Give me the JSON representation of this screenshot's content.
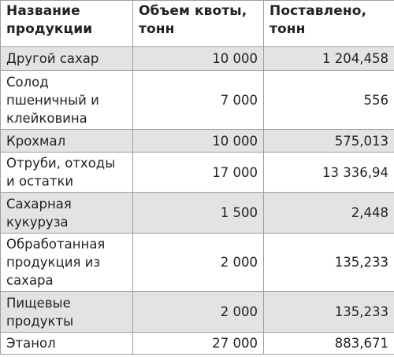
{
  "table": {
    "columns": [
      "Название продукции",
      "Объем квоты, тонн",
      "Поставлено, тонн"
    ],
    "rows": [
      {
        "name": "Другой сахар",
        "quota": "10 000",
        "delivered": "1 204,458"
      },
      {
        "name": "Солод пшеничный и клейковина",
        "quota": "7 000",
        "delivered": "556"
      },
      {
        "name": "Крохмал",
        "quota": "10 000",
        "delivered": "575,013"
      },
      {
        "name": "Отруби, отходы и остатки",
        "quota": "17 000",
        "delivered": "13 336,94"
      },
      {
        "name": "Сахарная кукуруза",
        "quota": "1 500",
        "delivered": "2,448"
      },
      {
        "name": "Обработанная продукция из сахара",
        "quota": "2 000",
        "delivered": "135,233"
      },
      {
        "name": "Пищевые продукты",
        "quota": "2 000",
        "delivered": "135,233"
      },
      {
        "name": "Этанол",
        "quota": "27 000",
        "delivered": "883,671"
      }
    ]
  },
  "colors": {
    "shaded_row": "#e3e3e3",
    "border": "#9e9e9e",
    "text": "#222222"
  }
}
